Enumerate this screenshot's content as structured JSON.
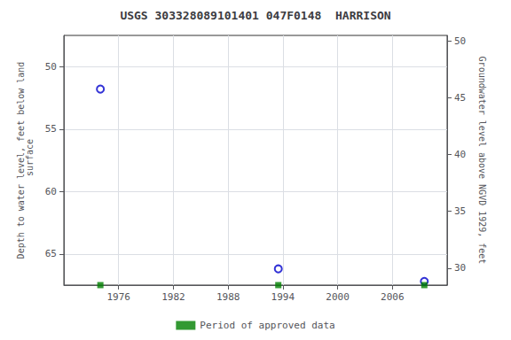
{
  "chart_data": {
    "type": "scatter",
    "title": "USGS 303328089101401 047F0148  HARRISON",
    "x_label": "",
    "y_label": "Depth to water level, feet below land\n surface",
    "y2_label": "Groundwater level above NGVD 1929, feet",
    "xlim": [
      1970,
      2012
    ],
    "xticks": [
      1976,
      1982,
      1988,
      1994,
      2000,
      2006
    ],
    "ylim": [
      67.5,
      47.5
    ],
    "yticks": [
      50,
      55,
      60,
      65
    ],
    "y2lim": [
      28.5,
      50.5
    ],
    "y2ticks": [
      30,
      35,
      40,
      45,
      50
    ],
    "grid": true,
    "legend": "bottom",
    "series": [
      {
        "color": "#0000cc",
        "marker": "emptyCircle",
        "x": [
          1974.0,
          1993.5,
          2009.5
        ],
        "values": [
          51.8,
          66.2,
          67.2
        ]
      },
      {
        "name": "Period of approved data",
        "color": "#008000",
        "marker": "square",
        "x": [
          1974.0,
          1993.5,
          2009.5
        ],
        "values": [
          67.5,
          67.5,
          67.5
        ]
      }
    ]
  }
}
